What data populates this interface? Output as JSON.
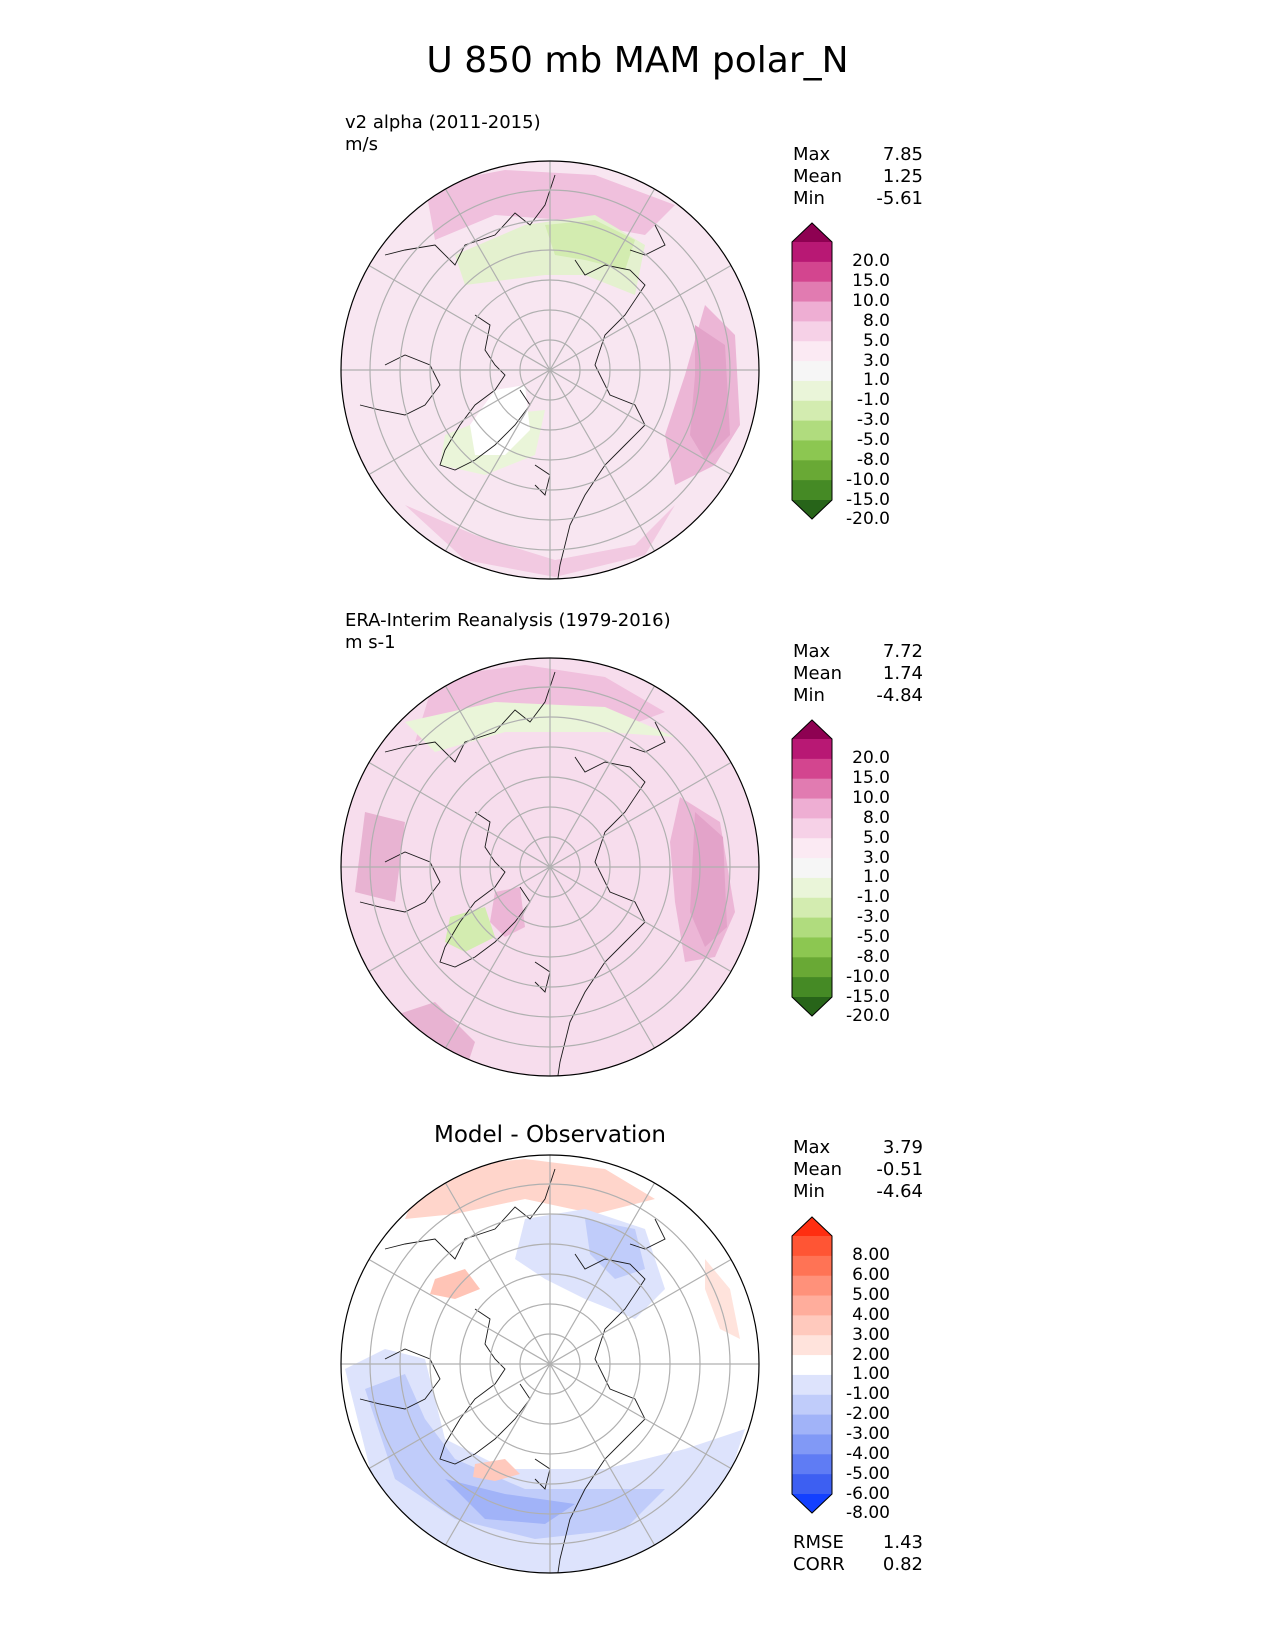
{
  "title": "U 850 mb MAM polar_N",
  "panels": [
    {
      "id": "model",
      "label_line1": "v2 alpha (2011-2015)",
      "label_line2": "m/s",
      "center_title": "",
      "stats": [
        {
          "name": "Max",
          "value": "7.85"
        },
        {
          "name": "Mean",
          "value": "1.25"
        },
        {
          "name": "Min",
          "value": "-5.61"
        }
      ],
      "extra_stats": [],
      "colorbar": {
        "ticks": [
          "20.0",
          "15.0",
          "10.0",
          "8.0",
          "5.0",
          "3.0",
          "1.0",
          "-1.0",
          "-3.0",
          "-5.0",
          "-8.0",
          "-10.0",
          "-15.0",
          "-20.0"
        ],
        "colors": [
          "#8e0152",
          "#b81874",
          "#d3458f",
          "#e17bb1",
          "#eeaed3",
          "#f6d1e7",
          "#fbeaf3",
          "#f6f6f6",
          "#eaf5d9",
          "#d3ecb0",
          "#b0dc7e",
          "#8cc751",
          "#69a935",
          "#458a25",
          "#276419"
        ]
      },
      "background": "#f8e6f1"
    },
    {
      "id": "obs",
      "label_line1": "ERA-Interim Reanalysis (1979-2016)",
      "label_line2": "m s-1",
      "center_title": "",
      "stats": [
        {
          "name": "Max",
          "value": "7.72"
        },
        {
          "name": "Mean",
          "value": "1.74"
        },
        {
          "name": "Min",
          "value": "-4.84"
        }
      ],
      "extra_stats": [],
      "colorbar": {
        "ticks": [
          "20.0",
          "15.0",
          "10.0",
          "8.0",
          "5.0",
          "3.0",
          "1.0",
          "-1.0",
          "-3.0",
          "-5.0",
          "-8.0",
          "-10.0",
          "-15.0",
          "-20.0"
        ],
        "colors": [
          "#8e0152",
          "#b81874",
          "#d3458f",
          "#e17bb1",
          "#eeaed3",
          "#f6d1e7",
          "#fbeaf3",
          "#f6f6f6",
          "#eaf5d9",
          "#d3ecb0",
          "#b0dc7e",
          "#8cc751",
          "#69a935",
          "#458a25",
          "#276419"
        ]
      },
      "background": "#f7dded"
    },
    {
      "id": "diff",
      "label_line1": "",
      "label_line2": "",
      "center_title": "Model - Observation",
      "stats": [
        {
          "name": "Max",
          "value": "3.79"
        },
        {
          "name": "Mean",
          "value": "-0.51"
        },
        {
          "name": "Min",
          "value": "-4.64"
        }
      ],
      "extra_stats": [
        {
          "name": "RMSE",
          "value": "1.43"
        },
        {
          "name": "CORR",
          "value": "0.82"
        }
      ],
      "colorbar": {
        "ticks": [
          "8.00",
          "6.00",
          "5.00",
          "4.00",
          "3.00",
          "2.00",
          "1.00",
          "-1.00",
          "-2.00",
          "-3.00",
          "-4.00",
          "-5.00",
          "-6.00",
          "-8.00"
        ],
        "colors": [
          "#ff2e10",
          "#ff5534",
          "#ff7355",
          "#ff917a",
          "#ffad9c",
          "#ffc9bd",
          "#ffe3dc",
          "#ffffff",
          "#dde3fc",
          "#c0ccfa",
          "#a1b3f8",
          "#8199f6",
          "#5f7cf4",
          "#3d5ff2",
          "#1340ff"
        ]
      },
      "background": "#ffffff"
    }
  ],
  "colors": {
    "text": "#000000",
    "gridline": "#b0b0b0",
    "coastline": "#1a1a1a"
  }
}
